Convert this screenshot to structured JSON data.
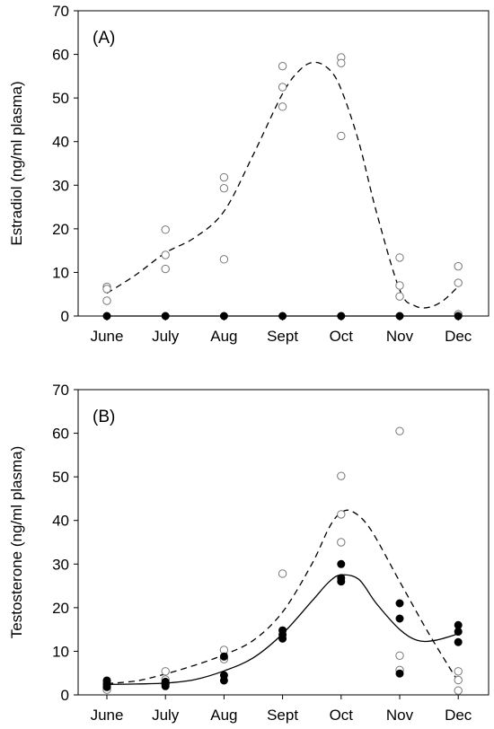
{
  "chart_data": [
    {
      "type": "scatter",
      "panel_label": "(A)",
      "ylabel": "Estradiol (ng/ml plasma)",
      "xlabel": "",
      "categories": [
        "June",
        "July",
        "Aug",
        "Sept",
        "Oct",
        "Nov",
        "Dec"
      ],
      "ylim": [
        0,
        70
      ],
      "yticks": [
        0,
        10,
        20,
        30,
        40,
        50,
        60,
        70
      ],
      "grid": false,
      "series": [
        {
          "marker": "open-circle",
          "points": [
            {
              "x": "June",
              "y": 6.7
            },
            {
              "x": "June",
              "y": 6.2
            },
            {
              "x": "June",
              "y": 3.5
            },
            {
              "x": "July",
              "y": 19.8
            },
            {
              "x": "July",
              "y": 14.0
            },
            {
              "x": "July",
              "y": 10.8
            },
            {
              "x": "Aug",
              "y": 31.8
            },
            {
              "x": "Aug",
              "y": 29.3
            },
            {
              "x": "Aug",
              "y": 13.0
            },
            {
              "x": "Sept",
              "y": 57.3
            },
            {
              "x": "Sept",
              "y": 52.5
            },
            {
              "x": "Sept",
              "y": 48.0
            },
            {
              "x": "Oct",
              "y": 59.3
            },
            {
              "x": "Oct",
              "y": 58.0
            },
            {
              "x": "Oct",
              "y": 41.3
            },
            {
              "x": "Nov",
              "y": 13.4
            },
            {
              "x": "Nov",
              "y": 7.0
            },
            {
              "x": "Nov",
              "y": 4.5
            },
            {
              "x": "Dec",
              "y": 11.4
            },
            {
              "x": "Dec",
              "y": 7.6
            },
            {
              "x": "Dec",
              "y": 0.4
            }
          ],
          "fit_style": "dashed",
          "fit": [
            {
              "x": 0,
              "y": 5.2
            },
            {
              "x": 0.5,
              "y": 9.5
            },
            {
              "x": 1,
              "y": 14.5
            },
            {
              "x": 1.5,
              "y": 18.0
            },
            {
              "x": 2,
              "y": 24.0
            },
            {
              "x": 2.5,
              "y": 37.0
            },
            {
              "x": 3,
              "y": 51.0
            },
            {
              "x": 3.3,
              "y": 56.5
            },
            {
              "x": 3.55,
              "y": 58.2
            },
            {
              "x": 3.8,
              "y": 56.5
            },
            {
              "x": 4,
              "y": 52.0
            },
            {
              "x": 4.3,
              "y": 40.0
            },
            {
              "x": 4.6,
              "y": 24.0
            },
            {
              "x": 5,
              "y": 6.0
            },
            {
              "x": 5.25,
              "y": 2.4
            },
            {
              "x": 5.5,
              "y": 2.0
            },
            {
              "x": 5.75,
              "y": 3.6
            },
            {
              "x": 6,
              "y": 6.8
            }
          ]
        },
        {
          "marker": "filled-circle",
          "points": [
            {
              "x": "June",
              "y": 0
            },
            {
              "x": "July",
              "y": 0
            },
            {
              "x": "Aug",
              "y": 0
            },
            {
              "x": "Sept",
              "y": 0
            },
            {
              "x": "Oct",
              "y": 0
            },
            {
              "x": "Nov",
              "y": 0
            },
            {
              "x": "Dec",
              "y": 0
            }
          ],
          "fit_style": "solid",
          "fit": [
            {
              "x": 0,
              "y": 0
            },
            {
              "x": 6,
              "y": 0
            }
          ]
        }
      ]
    },
    {
      "type": "scatter",
      "panel_label": "(B)",
      "ylabel": "Testosterone (ng/ml plasma)",
      "xlabel": "",
      "categories": [
        "June",
        "July",
        "Aug",
        "Sept",
        "Oct",
        "Nov",
        "Dec"
      ],
      "ylim": [
        0,
        70
      ],
      "yticks": [
        0,
        10,
        20,
        30,
        40,
        50,
        60,
        70
      ],
      "grid": false,
      "series": [
        {
          "marker": "open-circle",
          "points": [
            {
              "x": "June",
              "y": 2.8
            },
            {
              "x": "June",
              "y": 1.8
            },
            {
              "x": "June",
              "y": 1.2
            },
            {
              "x": "July",
              "y": 5.4
            },
            {
              "x": "July",
              "y": 3.5
            },
            {
              "x": "July",
              "y": 2.6
            },
            {
              "x": "Aug",
              "y": 10.3
            },
            {
              "x": "Aug",
              "y": 8.2
            },
            {
              "x": "Sept",
              "y": 27.8
            },
            {
              "x": "Oct",
              "y": 50.2
            },
            {
              "x": "Oct",
              "y": 41.4
            },
            {
              "x": "Oct",
              "y": 35.0
            },
            {
              "x": "Nov",
              "y": 60.5
            },
            {
              "x": "Nov",
              "y": 9.0
            },
            {
              "x": "Nov",
              "y": 5.7
            },
            {
              "x": "Dec",
              "y": 5.4
            },
            {
              "x": "Dec",
              "y": 3.4
            },
            {
              "x": "Dec",
              "y": 1.0
            }
          ],
          "fit_style": "dashed",
          "fit": [
            {
              "x": 0,
              "y": 2.6
            },
            {
              "x": 0.5,
              "y": 3.2
            },
            {
              "x": 1,
              "y": 4.8
            },
            {
              "x": 1.5,
              "y": 6.8
            },
            {
              "x": 2,
              "y": 9.2
            },
            {
              "x": 2.5,
              "y": 12.5
            },
            {
              "x": 3,
              "y": 19.0
            },
            {
              "x": 3.5,
              "y": 30.0
            },
            {
              "x": 3.8,
              "y": 38.5
            },
            {
              "x": 4,
              "y": 41.8
            },
            {
              "x": 4.2,
              "y": 42.0
            },
            {
              "x": 4.5,
              "y": 38.0
            },
            {
              "x": 5,
              "y": 26.0
            },
            {
              "x": 5.5,
              "y": 14.0
            },
            {
              "x": 6,
              "y": 3.0
            }
          ]
        },
        {
          "marker": "filled-circle",
          "points": [
            {
              "x": "June",
              "y": 3.3
            },
            {
              "x": "June",
              "y": 2.4
            },
            {
              "x": "June",
              "y": 1.8
            },
            {
              "x": "July",
              "y": 3.0
            },
            {
              "x": "July",
              "y": 2.5
            },
            {
              "x": "July",
              "y": 2.0
            },
            {
              "x": "Aug",
              "y": 8.8
            },
            {
              "x": "Aug",
              "y": 4.5
            },
            {
              "x": "Aug",
              "y": 3.3
            },
            {
              "x": "Sept",
              "y": 14.8
            },
            {
              "x": "Sept",
              "y": 13.8
            },
            {
              "x": "Sept",
              "y": 12.9
            },
            {
              "x": "Oct",
              "y": 30.0
            },
            {
              "x": "Oct",
              "y": 26.8
            },
            {
              "x": "Oct",
              "y": 26.0
            },
            {
              "x": "Nov",
              "y": 21.0
            },
            {
              "x": "Nov",
              "y": 17.5
            },
            {
              "x": "Nov",
              "y": 4.9
            },
            {
              "x": "Dec",
              "y": 16.0
            },
            {
              "x": "Dec",
              "y": 14.5
            },
            {
              "x": "Dec",
              "y": 12.1
            }
          ],
          "fit_style": "solid",
          "fit": [
            {
              "x": 0,
              "y": 2.4
            },
            {
              "x": 0.5,
              "y": 2.5
            },
            {
              "x": 1,
              "y": 2.7
            },
            {
              "x": 1.5,
              "y": 3.5
            },
            {
              "x": 2,
              "y": 5.5
            },
            {
              "x": 2.5,
              "y": 8.5
            },
            {
              "x": 3,
              "y": 14.0
            },
            {
              "x": 3.5,
              "y": 21.5
            },
            {
              "x": 3.8,
              "y": 26.0
            },
            {
              "x": 4,
              "y": 27.5
            },
            {
              "x": 4.3,
              "y": 26.5
            },
            {
              "x": 4.6,
              "y": 21.0
            },
            {
              "x": 5,
              "y": 15.0
            },
            {
              "x": 5.3,
              "y": 12.5
            },
            {
              "x": 5.6,
              "y": 12.5
            },
            {
              "x": 6,
              "y": 14.0
            }
          ]
        }
      ]
    }
  ]
}
